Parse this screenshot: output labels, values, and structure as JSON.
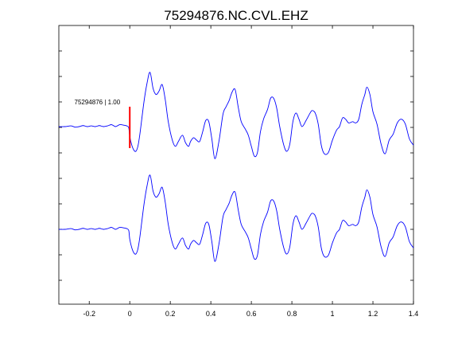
{
  "chart_data": {
    "type": "line",
    "title": "75294876.NC.CVL.EHZ",
    "xlabel": "",
    "ylabel": "",
    "xlim": [
      -0.35,
      1.4
    ],
    "x_ticks": [
      -0.2,
      0,
      0.2,
      0.4,
      0.6,
      0.8,
      1,
      1.2,
      1.4
    ],
    "x_tick_labels": [
      "-0.2",
      "0",
      "0.2",
      "0.4",
      "0.6",
      "0.8",
      "1",
      "1.2",
      "1.4"
    ],
    "y_tick_count": 10,
    "grid": false,
    "colors": {
      "trace": "#0000ff",
      "pick": "#ff0000",
      "axes": "#000000"
    },
    "annotation": {
      "label": "75294876 | 1.00",
      "x": 0.0
    },
    "series": [
      {
        "offset": 1,
        "x": [
          -0.35,
          -0.32,
          -0.29,
          -0.27,
          -0.25,
          -0.23,
          -0.21,
          -0.19,
          -0.17,
          -0.15,
          -0.13,
          -0.11,
          -0.09,
          -0.07,
          -0.05,
          -0.03,
          -0.015,
          -0.005,
          0.0,
          0.01,
          0.02,
          0.03,
          0.04,
          0.05,
          0.07,
          0.085,
          0.1,
          0.115,
          0.13,
          0.145,
          0.16,
          0.175,
          0.19,
          0.21,
          0.225,
          0.24,
          0.26,
          0.275,
          0.29,
          0.3,
          0.315,
          0.33,
          0.345,
          0.36,
          0.375,
          0.39,
          0.405,
          0.42,
          0.44,
          0.46,
          0.475,
          0.49,
          0.505,
          0.52,
          0.535,
          0.55,
          0.57,
          0.585,
          0.6,
          0.615,
          0.63,
          0.645,
          0.66,
          0.68,
          0.695,
          0.71,
          0.725,
          0.74,
          0.76,
          0.775,
          0.79,
          0.805,
          0.82,
          0.835,
          0.85,
          0.87,
          0.89,
          0.9,
          0.915,
          0.93,
          0.945,
          0.96,
          0.98,
          1.0,
          1.02,
          1.035,
          1.05,
          1.065,
          1.08,
          1.1,
          1.115,
          1.13,
          1.145,
          1.16,
          1.17,
          1.185,
          1.2,
          1.22,
          1.24,
          1.26,
          1.28,
          1.3,
          1.32,
          1.34,
          1.36,
          1.38,
          1.4
        ],
        "y": [
          0.0,
          0.0,
          0.03,
          -0.02,
          0.0,
          0.04,
          0.0,
          0.03,
          0.0,
          0.04,
          0.0,
          0.03,
          0.08,
          0.0,
          0.08,
          0.06,
          0.03,
          -0.05,
          -0.4,
          -0.75,
          -0.95,
          -1.0,
          -0.8,
          -0.3,
          1.0,
          1.75,
          2.2,
          1.55,
          1.3,
          1.45,
          1.7,
          1.1,
          0.2,
          -0.55,
          -0.8,
          -0.6,
          -0.35,
          -0.65,
          -0.8,
          -0.6,
          -0.45,
          -0.55,
          -0.6,
          -0.2,
          0.25,
          0.2,
          -0.5,
          -1.3,
          -0.6,
          0.5,
          0.8,
          1.05,
          1.4,
          1.5,
          0.8,
          0.2,
          -0.1,
          -0.35,
          -0.8,
          -1.2,
          -1.05,
          -0.2,
          0.3,
          0.7,
          1.15,
          1.15,
          0.75,
          0.0,
          -0.75,
          -1.0,
          -0.7,
          0.2,
          0.55,
          0.3,
          0.0,
          0.25,
          0.55,
          0.65,
          0.55,
          0.1,
          -0.75,
          -1.1,
          -1.05,
          -0.55,
          -0.15,
          0.0,
          0.35,
          0.3,
          0.15,
          0.2,
          0.15,
          0.3,
          0.9,
          1.3,
          1.6,
          1.3,
          0.6,
          0.1,
          -0.7,
          -1.1,
          -0.55,
          -0.3,
          0.15,
          0.3,
          0.1,
          -0.5,
          -0.75
        ]
      },
      {
        "offset": -1,
        "x": [
          -0.35,
          -0.32,
          -0.29,
          -0.27,
          -0.25,
          -0.23,
          -0.21,
          -0.19,
          -0.17,
          -0.15,
          -0.13,
          -0.11,
          -0.09,
          -0.07,
          -0.05,
          -0.03,
          -0.015,
          -0.005,
          0.0,
          0.01,
          0.02,
          0.03,
          0.04,
          0.05,
          0.07,
          0.085,
          0.1,
          0.115,
          0.13,
          0.145,
          0.16,
          0.175,
          0.19,
          0.21,
          0.225,
          0.24,
          0.26,
          0.275,
          0.29,
          0.3,
          0.315,
          0.33,
          0.345,
          0.36,
          0.375,
          0.39,
          0.405,
          0.42,
          0.44,
          0.46,
          0.475,
          0.49,
          0.505,
          0.52,
          0.535,
          0.55,
          0.57,
          0.585,
          0.6,
          0.615,
          0.63,
          0.645,
          0.66,
          0.68,
          0.695,
          0.71,
          0.725,
          0.74,
          0.76,
          0.775,
          0.79,
          0.805,
          0.82,
          0.835,
          0.85,
          0.87,
          0.89,
          0.9,
          0.915,
          0.93,
          0.945,
          0.96,
          0.98,
          1.0,
          1.02,
          1.035,
          1.05,
          1.065,
          1.08,
          1.1,
          1.115,
          1.13,
          1.145,
          1.16,
          1.17,
          1.185,
          1.2,
          1.22,
          1.24,
          1.26,
          1.28,
          1.3,
          1.32,
          1.34,
          1.36,
          1.38,
          1.4
        ],
        "y": [
          0.0,
          0.0,
          0.03,
          -0.02,
          0.0,
          0.04,
          0.0,
          0.03,
          0.0,
          0.04,
          0.0,
          0.03,
          0.08,
          0.0,
          0.08,
          0.06,
          0.03,
          -0.05,
          -0.4,
          -0.75,
          -0.95,
          -1.0,
          -0.8,
          -0.3,
          1.0,
          1.75,
          2.2,
          1.55,
          1.3,
          1.45,
          1.7,
          1.1,
          0.2,
          -0.55,
          -0.8,
          -0.6,
          -0.35,
          -0.65,
          -0.8,
          -0.6,
          -0.45,
          -0.55,
          -0.6,
          -0.2,
          0.25,
          0.2,
          -0.5,
          -1.3,
          -0.6,
          0.5,
          0.8,
          1.05,
          1.4,
          1.5,
          0.8,
          0.2,
          -0.1,
          -0.35,
          -0.8,
          -1.2,
          -1.05,
          -0.2,
          0.3,
          0.7,
          1.15,
          1.15,
          0.75,
          0.0,
          -0.75,
          -1.0,
          -0.7,
          0.2,
          0.55,
          0.3,
          0.0,
          0.25,
          0.55,
          0.65,
          0.55,
          0.1,
          -0.75,
          -1.1,
          -1.05,
          -0.55,
          -0.15,
          0.0,
          0.35,
          0.3,
          0.15,
          0.2,
          0.15,
          0.3,
          0.9,
          1.3,
          1.6,
          1.3,
          0.6,
          0.1,
          -0.7,
          -1.1,
          -0.55,
          -0.3,
          0.15,
          0.3,
          0.1,
          -0.5,
          -0.75
        ]
      }
    ]
  }
}
